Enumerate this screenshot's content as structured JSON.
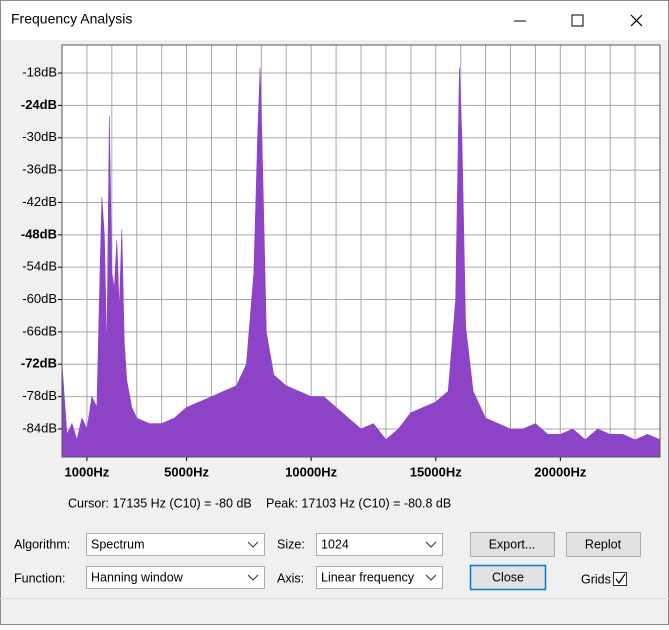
{
  "window": {
    "title": "Frequency Analysis"
  },
  "chart_data": {
    "type": "area",
    "x": [
      0,
      200,
      400,
      600,
      800,
      1000,
      1200,
      1400,
      1500,
      1600,
      1700,
      1800,
      1900,
      2000,
      2100,
      2200,
      2300,
      2400,
      2500,
      2600,
      2800,
      3000,
      3500,
      4000,
      4500,
      5000,
      5500,
      6000,
      6500,
      7000,
      7400,
      7700,
      7850,
      7950,
      8050,
      8200,
      8500,
      9000,
      9500,
      10000,
      10500,
      11000,
      11500,
      12000,
      12500,
      13000,
      13500,
      14000,
      14500,
      15000,
      15500,
      15800,
      15950,
      16050,
      16200,
      16500,
      17000,
      17500,
      18000,
      18500,
      19000,
      19500,
      20000,
      20500,
      21000,
      21500,
      22000,
      22500,
      23000,
      23500,
      24000
    ],
    "values": [
      -72,
      -85,
      -83,
      -86,
      -82,
      -84,
      -78,
      -80,
      -60,
      -41,
      -48,
      -70,
      -26,
      -55,
      -58,
      -49,
      -62,
      -47,
      -68,
      -75,
      -80,
      -82,
      -83,
      -83,
      -82,
      -80,
      -79,
      -78,
      -77,
      -76,
      -72,
      -55,
      -30,
      -17,
      -35,
      -66,
      -74,
      -76,
      -77,
      -78,
      -78,
      -80,
      -82,
      -84,
      -83,
      -86,
      -84,
      -81,
      -80,
      -79,
      -77,
      -60,
      -17,
      -30,
      -65,
      -77,
      -82,
      -83,
      -84,
      -84,
      -83,
      -85,
      -85,
      -84,
      -86,
      -84,
      -85,
      -85,
      -86,
      -85,
      -86
    ],
    "color": "#8c43c6",
    "xlim": [
      0,
      24000
    ],
    "ylim": [
      -89.2,
      -12.8
    ],
    "xticks": [
      {
        "value": 1000,
        "label": "1000Hz"
      },
      {
        "value": 5000,
        "label": "5000Hz"
      },
      {
        "value": 10000,
        "label": "10000Hz"
      },
      {
        "value": 15000,
        "label": "15000Hz"
      },
      {
        "value": 20000,
        "label": "20000Hz"
      }
    ],
    "xgrid_lines": [
      1000,
      2000,
      3000,
      4000,
      5000,
      6000,
      7000,
      8000,
      9000,
      10000,
      11000,
      12000,
      13000,
      14000,
      15000,
      16000,
      17000,
      18000,
      19000,
      20000,
      21000,
      22000,
      23000
    ],
    "yticks": [
      {
        "value": -18,
        "label": "-18dB"
      },
      {
        "value": -24,
        "label": "-24dB"
      },
      {
        "value": -30,
        "label": "-30dB"
      },
      {
        "value": -36,
        "label": "-36dB"
      },
      {
        "value": -42,
        "label": "-42dB"
      },
      {
        "value": -48,
        "label": "-48dB"
      },
      {
        "value": -54,
        "label": "-54dB"
      },
      {
        "value": -60,
        "label": "-60dB"
      },
      {
        "value": -66,
        "label": "-66dB"
      },
      {
        "value": -72,
        "label": "-72dB"
      },
      {
        "value": -78,
        "label": "-78dB"
      },
      {
        "value": -84,
        "label": "-84dB"
      }
    ],
    "grid": true
  },
  "status": {
    "cursor": "Cursor: 17135 Hz (C10) = -80 dB",
    "peak": "Peak: 17103 Hz (C10) = -80.8 dB"
  },
  "controls": {
    "algorithm_label": "Algorithm:",
    "algorithm": "Spectrum",
    "size_label": "Size:",
    "size": "1024",
    "function_label": "Function:",
    "function": "Hanning window",
    "axis_label": "Axis:",
    "axis": "Linear frequency",
    "grids_label": "Grids"
  },
  "buttons": {
    "export": "Export...",
    "replot": "Replot",
    "close": "Close"
  }
}
